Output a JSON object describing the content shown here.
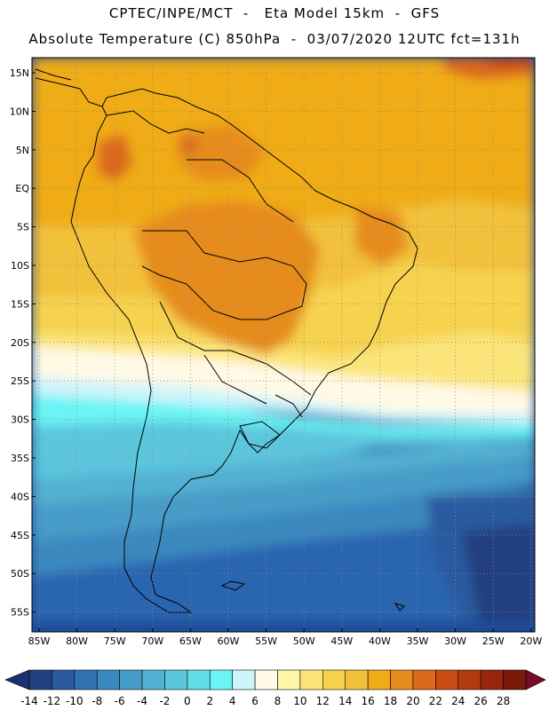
{
  "header": {
    "line1": "CPTEC/INPE/MCT  -   Eta Model 15km  -  GFS",
    "line2": "Absolute Temperature (C) 850hPa  -  03/07/2020 12UTC fct=131h"
  },
  "map": {
    "lat_labels": [
      "15N",
      "10N",
      "5N",
      "EQ",
      "5S",
      "10S",
      "15S",
      "20S",
      "25S",
      "30S",
      "35S",
      "40S",
      "45S",
      "50S",
      "55S"
    ],
    "lon_labels": [
      "85W",
      "80W",
      "75W",
      "70W",
      "65W",
      "60W",
      "55W",
      "50W",
      "45W",
      "40W",
      "35W",
      "30W",
      "25W",
      "20W"
    ],
    "region": "South America",
    "field": "Absolute Temperature 850hPa"
  },
  "colorbar": {
    "labels": [
      "-14",
      "-12",
      "-10",
      "-8",
      "-6",
      "-4",
      "-2",
      "0",
      "2",
      "4",
      "6",
      "8",
      "10",
      "12",
      "14",
      "16",
      "18",
      "20",
      "22",
      "24",
      "26",
      "28"
    ],
    "colors": [
      "#22407f",
      "#2a5a9f",
      "#3072b2",
      "#3b88bf",
      "#469cc8",
      "#52b1d2",
      "#5cc6dd",
      "#62dbe8",
      "#6af4f4",
      "#cdf4fa",
      "#fff9e6",
      "#fff7a8",
      "#fbe57a",
      "#f6d24f",
      "#f2c13a",
      "#efac18",
      "#e68c1c",
      "#dc681a",
      "#c94a12",
      "#b23a0e",
      "#98260c",
      "#7c1a0a"
    ],
    "under_color": "#1f3072",
    "over_color": "#7a0a2a"
  }
}
